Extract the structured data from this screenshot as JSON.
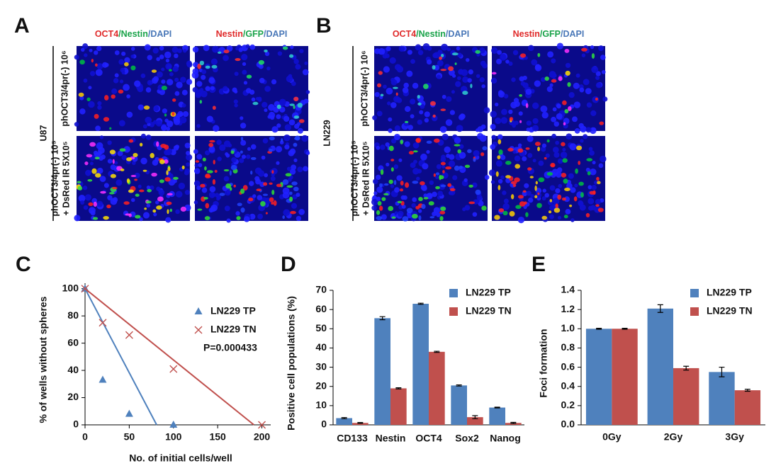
{
  "panel_labels": [
    "A",
    "B",
    "C",
    "D",
    "E"
  ],
  "micrographs": [
    {
      "cell_line": "U87",
      "stains": [
        [
          {
            "text": "OCT4",
            "color": "#e02a2a"
          },
          {
            "text": "/Nestin",
            "color": "#1aa34a"
          },
          {
            "text": "/DAPI",
            "color": "#4a78b8"
          }
        ],
        [
          {
            "text": "Nestin",
            "color": "#e02a2a"
          },
          {
            "text": "/GFP",
            "color": "#1aa34a"
          },
          {
            "text": "/DAPI",
            "color": "#4a78b8"
          }
        ]
      ],
      "rows": [
        [
          "phOCT3/4pr(-) 10⁶"
        ],
        [
          "phOCT3/4pr(-) 10⁵",
          "+ DsRed IR 5X10⁵"
        ]
      ]
    },
    {
      "cell_line": "LN229",
      "stains": [
        [
          {
            "text": "OCT4",
            "color": "#e02a2a"
          },
          {
            "text": "/Nestin",
            "color": "#1aa34a"
          },
          {
            "text": "/DAPI",
            "color": "#4a78b8"
          }
        ],
        [
          {
            "text": "Nestin",
            "color": "#e02a2a"
          },
          {
            "text": "/GFP",
            "color": "#1aa34a"
          },
          {
            "text": "/DAPI",
            "color": "#4a78b8"
          }
        ]
      ],
      "rows": [
        [
          "phOCT3/4pr(-) 10⁶"
        ],
        [
          "phOCT3/4pr(-) 10⁵",
          "+ DsRed IR 5X10⁵"
        ]
      ]
    }
  ],
  "chart_data": [
    {
      "type": "scatter",
      "xlabel": "No. of initial cells/well",
      "ylabel": "% of wells without spheres",
      "annotation": "P=0.000433",
      "xlim": [
        0,
        210
      ],
      "xticks": [
        0,
        50,
        100,
        150,
        200
      ],
      "ylim": [
        0,
        104
      ],
      "yticks": [
        0,
        20,
        40,
        60,
        80,
        100
      ],
      "series": [
        {
          "name": "LN229 TP",
          "color": "#4f81bd",
          "marker": "triangle",
          "x": [
            0,
            20,
            50,
            100
          ],
          "values": [
            100,
            33,
            8,
            0
          ],
          "fit": {
            "x": [
              0,
              81
            ],
            "values": [
              100,
              0
            ]
          }
        },
        {
          "name": "LN229 TN",
          "color": "#c0504d",
          "marker": "cross",
          "x": [
            0,
            20,
            50,
            100,
            200
          ],
          "values": [
            100,
            75,
            66,
            41,
            0
          ],
          "fit": {
            "x": [
              0,
              191
            ],
            "values": [
              100,
              0
            ]
          }
        }
      ]
    },
    {
      "type": "bar",
      "ylabel": "Positive cell populations (%)",
      "categories": [
        "CD133",
        "Nestin",
        "OCT4",
        "Sox2",
        "Nanog"
      ],
      "ylim": [
        0,
        70
      ],
      "yticks": [
        0,
        10,
        20,
        30,
        40,
        50,
        60,
        70
      ],
      "series": [
        {
          "name": "LN229 TP",
          "color": "#4f81bd",
          "values": [
            3.5,
            55.5,
            63,
            20.5,
            9
          ],
          "errors": [
            0.3,
            0.8,
            0.3,
            0.3,
            0.2
          ]
        },
        {
          "name": "LN229 TN",
          "color": "#c0504d",
          "values": [
            1,
            19,
            38,
            4,
            1
          ],
          "errors": [
            0.2,
            0.3,
            0.3,
            0.8,
            0.3
          ]
        }
      ]
    },
    {
      "type": "bar",
      "ylabel": "Foci formation",
      "categories": [
        "0Gy",
        "2Gy",
        "3Gy"
      ],
      "ylim": [
        0,
        1.4
      ],
      "yticks": [
        {
          "value": 0,
          "label": "0.0"
        },
        0.2,
        0.4,
        0.6,
        0.8,
        {
          "value": 1,
          "label": "1.0"
        },
        1.2,
        1.4
      ],
      "series": [
        {
          "name": "LN229 TP",
          "color": "#4f81bd",
          "values": [
            1.0,
            1.21,
            0.55
          ],
          "errors": [
            0.005,
            0.04,
            0.05
          ]
        },
        {
          "name": "LN229 TN",
          "color": "#c0504d",
          "values": [
            1.0,
            0.59,
            0.36
          ],
          "errors": [
            0.005,
            0.02,
            0.01
          ]
        }
      ]
    }
  ]
}
